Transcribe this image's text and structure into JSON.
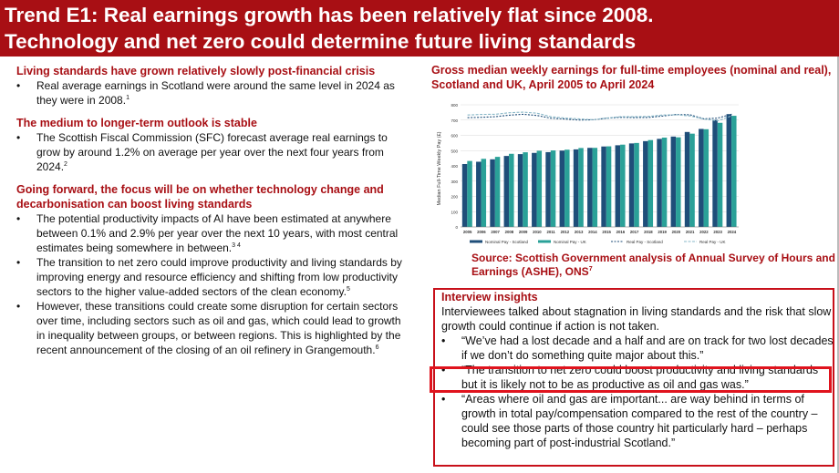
{
  "banner": {
    "line1": "Trend E1: Real earnings growth has been relatively flat since 2008.",
    "line2": "Technology and net zero could determine future living standards"
  },
  "left": {
    "s1_heading": "Living standards have grown relatively slowly post-financial crisis",
    "s1_b1": "Real average earnings in Scotland were around the same level in 2024 as they were in 2008.",
    "s1_b1_sup": "1",
    "s2_heading": "The medium to longer-term outlook is stable",
    "s2_b1": "The Scottish Fiscal Commission (SFC) forecast average real earnings to grow by around 1.2% on average per year over the next four years from 2024.",
    "s2_b1_sup": "2",
    "s3_heading": "Going forward, the focus will be on whether technology change and decarbonisation can boost living standards",
    "s3_b1": "The potential productivity impacts of AI have been estimated at anywhere between 0.1% and 2.9% per year over the next 10 years, with most central estimates being somewhere in between.",
    "s3_b1_sup": "3 4",
    "s3_b2": "The transition to net zero could improve productivity and living standards by improving energy and resource efficiency and shifting from low productivity sectors to the higher value-added sectors of the clean economy.",
    "s3_b2_sup": "5",
    "s3_b3": "However, these transitions could create some disruption for certain sectors over time, including sectors such as oil and gas, which could lead to growth in inequality between groups, or between regions. This is highlighted by the recent announcement of the closing of an oil refinery in Grangemouth.",
    "s3_b3_sup": "6"
  },
  "chart_title": "Gross median weekly earnings for full-time employees (nominal and real), Scotland and UK, April 2005 to April 2024",
  "source": {
    "text": "Source: Scottish Government analysis of Annual Survey of Hours and Earnings (ASHE), ONS",
    "sup": "7"
  },
  "interview": {
    "heading": "Interview insights",
    "intro": "Interviewees talked about stagnation in living standards and the risk that slow growth could continue if action is not taken.",
    "q1": "“We’ve had a lost decade and a half and are on track for two lost decades if we don’t do something quite major about this.”",
    "q2": "“The transition to net zero could boost productivity and living standards but it is likely not to be as productive as oil and gas was.”",
    "q3": "“Areas where oil and gas are important... are way behind in terms of growth in total pay/compensation compared to the rest of the country – could see those parts of those country hit particularly hard – perhaps becoming part of post-industrial Scotland.”"
  },
  "colors": {
    "brand_red": "#a80f14",
    "nominal_scotland": "#1f4e79",
    "nominal_uk": "#2aa198",
    "real_scotland": "#1f4e79",
    "real_uk": "#8ab8c8"
  },
  "chart_data": {
    "type": "bar",
    "ylabel": "Median Full-Time Weekly Pay (£)",
    "ylim": [
      0,
      800
    ],
    "yticks": [
      "0",
      "100",
      "200",
      "300",
      "400",
      "500",
      "600",
      "700",
      "800"
    ],
    "categories": [
      "2005",
      "2006",
      "2007",
      "2008",
      "2009",
      "2010",
      "2011",
      "2012",
      "2013",
      "2014",
      "2015",
      "2016",
      "2017",
      "2018",
      "2019",
      "2020",
      "2021",
      "2022",
      "2023",
      "2024"
    ],
    "series": [
      {
        "name": "Nominal Pay - Scotland",
        "kind": "bar",
        "values": [
          412,
          427,
          443,
          465,
          477,
          485,
          490,
          500,
          508,
          518,
          527,
          535,
          547,
          562,
          577,
          592,
          622,
          642,
          702,
          739
        ]
      },
      {
        "name": "Nominal Pay - UK",
        "kind": "bar",
        "values": [
          432,
          446,
          459,
          479,
          489,
          499,
          501,
          506,
          517,
          518,
          528,
          539,
          550,
          569,
          585,
          587,
          611,
          640,
          682,
          728
        ]
      },
      {
        "name": "Real Pay - Scotland",
        "kind": "line",
        "values": [
          716,
          718,
          722,
          732,
          738,
          730,
          712,
          707,
          700,
          702,
          712,
          718,
          716,
          717,
          726,
          736,
          735,
          708,
          713,
          739
        ]
      },
      {
        "name": "Real Pay - UK",
        "kind": "line",
        "values": [
          733,
          737,
          738,
          748,
          752,
          745,
          722,
          713,
          708,
          702,
          713,
          722,
          722,
          724,
          733,
          735,
          727,
          707,
          695,
          728
        ]
      }
    ],
    "legend": "bottom",
    "grid": true
  }
}
